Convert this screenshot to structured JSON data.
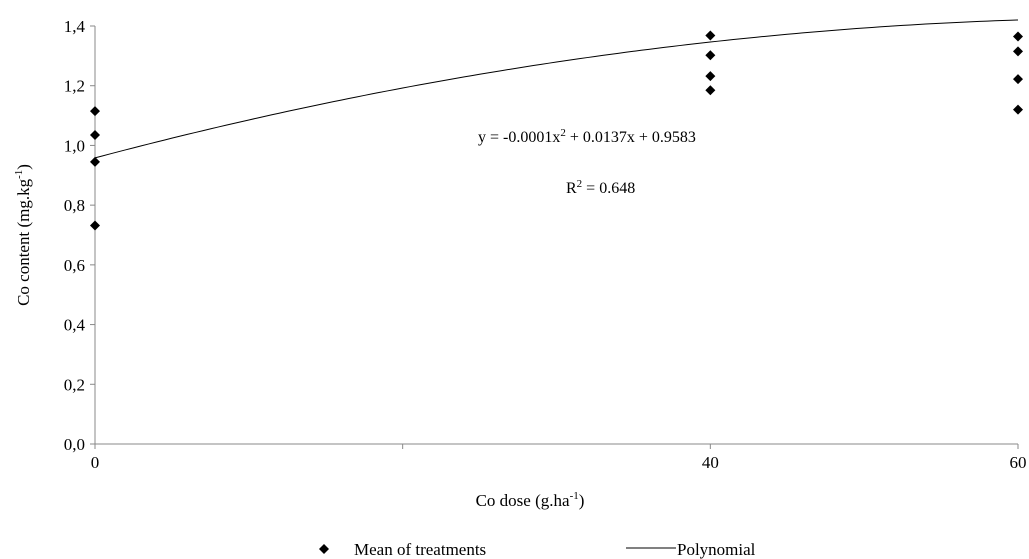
{
  "chart_data": {
    "type": "scatter",
    "xlabel": "Co dose (g.ha",
    "xlabel_sup": "-1",
    "xlabel_end": ")",
    "ylabel": "Co content  (mg.kg",
    "ylabel_sup": "-1",
    "ylabel_end": ")",
    "x_ticks": [
      {
        "value": 0,
        "label": "0"
      },
      {
        "value": 40,
        "label": "40"
      },
      {
        "value": 60,
        "label": "60"
      }
    ],
    "y_ticks": [
      {
        "value": 0.0,
        "label": "0,0"
      },
      {
        "value": 0.2,
        "label": "0,2"
      },
      {
        "value": 0.4,
        "label": "0,4"
      },
      {
        "value": 0.6,
        "label": "0,6"
      },
      {
        "value": 0.8,
        "label": "0,8"
      },
      {
        "value": 1.0,
        "label": "1,0"
      },
      {
        "value": 1.2,
        "label": "1,2"
      },
      {
        "value": 1.4,
        "label": "1,4"
      }
    ],
    "xlim": [
      0,
      60
    ],
    "ylim": [
      0,
      1.4
    ],
    "grid": false,
    "legend_position": "bottom",
    "series": [
      {
        "name": "Mean of treatments",
        "marker": "diamond",
        "color": "#000000",
        "points": [
          {
            "x": 0,
            "y": 1.115
          },
          {
            "x": 0,
            "y": 1.035
          },
          {
            "x": 0,
            "y": 0.945
          },
          {
            "x": 0,
            "y": 0.732
          },
          {
            "x": 40,
            "y": 1.368
          },
          {
            "x": 40,
            "y": 1.302
          },
          {
            "x": 40,
            "y": 1.232
          },
          {
            "x": 40,
            "y": 1.185
          },
          {
            "x": 60,
            "y": 1.365
          },
          {
            "x": 60,
            "y": 1.315
          },
          {
            "x": 60,
            "y": 1.222
          },
          {
            "x": 60,
            "y": 1.12
          }
        ]
      },
      {
        "name": "Polynomial",
        "type": "line",
        "color": "#000000",
        "coefficients": {
          "a": -0.0001,
          "b": 0.0137,
          "c": 0.9583
        }
      }
    ],
    "annotations": {
      "equation_pre": "y = -0.0001x",
      "equation_sup": "2",
      "equation_post": " + 0.0137x + 0.9583",
      "r2_pre": "R",
      "r2_sup": "2",
      "r2_post": " = 0.648"
    }
  }
}
